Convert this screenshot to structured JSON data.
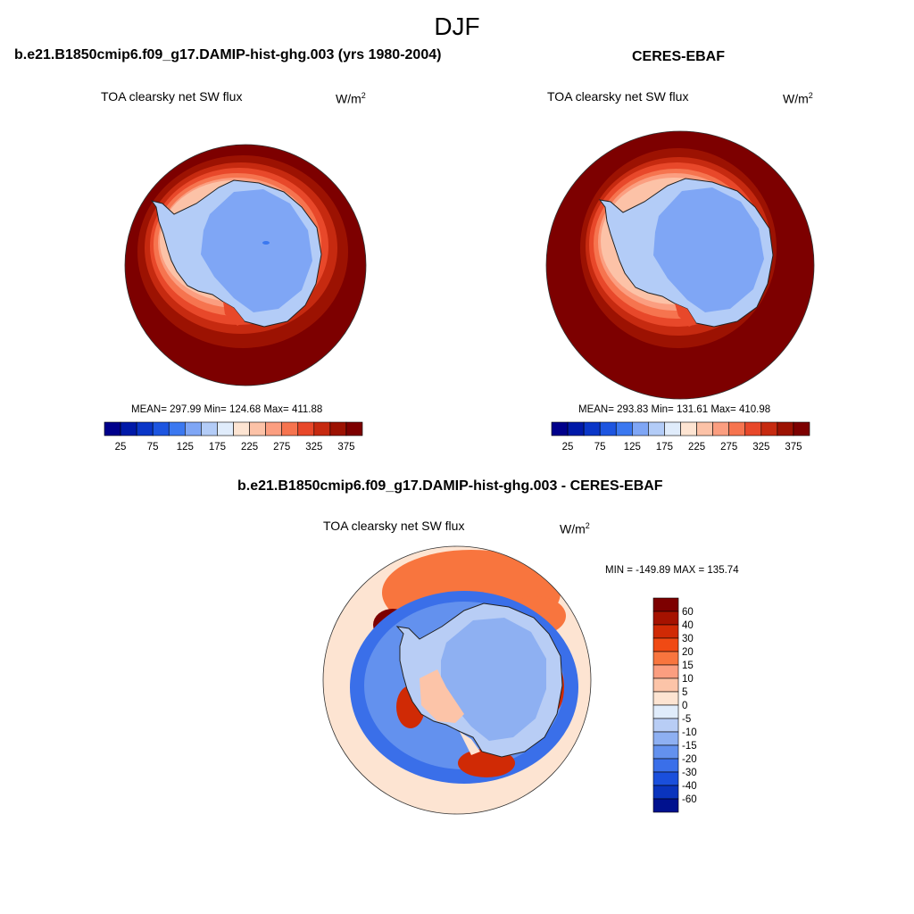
{
  "figure": {
    "season": "DJF",
    "panel_a_title": "b.e21.B1850cmip6.f09_g17.DAMIP-hist-ghg.003 (yrs 1980-2004)",
    "panel_b_title": "CERES-EBAF",
    "panel_c_title": "b.e21.B1850cmip6.f09_g17.DAMIP-hist-ghg.003 - CERES-EBAF",
    "variable": "TOA clearsky net SW flux",
    "units_base": "W/m",
    "units_exp": "2"
  },
  "panel_a": {
    "stats_label": "MEAN= 297.99  Min= 124.68  Max= 411.88",
    "mean": 297.99,
    "min": 124.68,
    "max": 411.88
  },
  "panel_b": {
    "stats_label": "MEAN= 293.83  Min= 131.61  Max= 410.98",
    "mean": 293.83,
    "min": 131.61,
    "max": 410.98
  },
  "panel_c": {
    "stats_label": "MIN = -149.89 MAX = 135.74",
    "min": -149.89,
    "max": 135.74
  },
  "colorbar_abs": {
    "colors": [
      "#00008b",
      "#0019a8",
      "#0a36c8",
      "#1d55e0",
      "#3b78f0",
      "#7fa6f5",
      "#b3ccf7",
      "#e0ecfb",
      "#fde4d2",
      "#fcc2a7",
      "#fb9e80",
      "#f6744f",
      "#e8482a",
      "#c62a10",
      "#9c1202",
      "#7d0000"
    ],
    "ticks": [
      "25",
      "75",
      "125",
      "175",
      "225",
      "275",
      "325",
      "375"
    ]
  },
  "colorbar_diff": {
    "colors": [
      "#7d0000",
      "#a51200",
      "#d02a05",
      "#f04a14",
      "#f8753e",
      "#fb9e80",
      "#fcc4a8",
      "#fde4d2",
      "#e0ecfb",
      "#b8cdf5",
      "#8eb0f2",
      "#6391ee",
      "#3a6fe9",
      "#1a4fdc",
      "#0a34bd",
      "#00118e"
    ],
    "ticks": [
      "60",
      "40",
      "30",
      "20",
      "15",
      "10",
      "5",
      "0",
      "-5",
      "-10",
      "-15",
      "-20",
      "-30",
      "-40",
      "-60"
    ]
  }
}
